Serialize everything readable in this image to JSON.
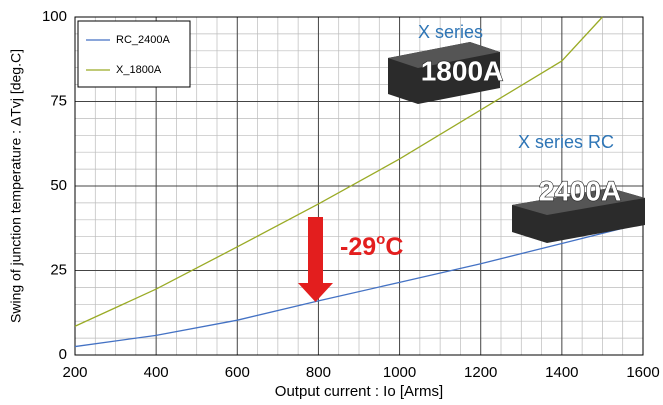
{
  "chart_data": {
    "type": "line",
    "x_label": "Output current : Io [Arms]",
    "y_label": "Swing of junction temperature : ΔTvj [deg.C]",
    "series": [
      {
        "name": "RC_2400A",
        "color": "#4472c4",
        "x": [
          200,
          400,
          600,
          800,
          1000,
          1200,
          1400,
          1600
        ],
        "values": [
          2.5,
          5.8,
          10.3,
          16,
          21.5,
          27,
          33,
          39
        ]
      },
      {
        "name": "X_1800A",
        "color": "#9aab26",
        "x": [
          200,
          400,
          600,
          800,
          1000,
          1200,
          1400,
          1500
        ],
        "values": [
          8.5,
          19.5,
          32,
          44.7,
          58,
          72.5,
          87,
          100
        ]
      }
    ],
    "xlim": [
      200,
      1600
    ],
    "ylim": [
      0,
      100
    ],
    "xticks": [
      200,
      400,
      600,
      800,
      1000,
      1200,
      1400,
      1600
    ],
    "yticks": [
      0,
      25,
      50,
      75,
      100
    ],
    "x_minor_ticks": [
      250,
      300,
      350,
      450,
      500,
      550,
      650,
      700,
      750,
      850,
      900,
      950,
      1050,
      1100,
      1150,
      1250,
      1300,
      1350,
      1450,
      1500,
      1550
    ],
    "y_minor_ticks": [
      5,
      10,
      15,
      20,
      30,
      35,
      40,
      45,
      55,
      60,
      65,
      70,
      80,
      85,
      90,
      95
    ],
    "grid": true,
    "legend": "upper left",
    "annotations": {
      "x_series": "X series",
      "x_rating": "1800A",
      "rc_series": "X series RC",
      "rc_rating": "2400A",
      "delta_num": "-29",
      "delta_deg": "o",
      "delta_unit": "C"
    }
  }
}
